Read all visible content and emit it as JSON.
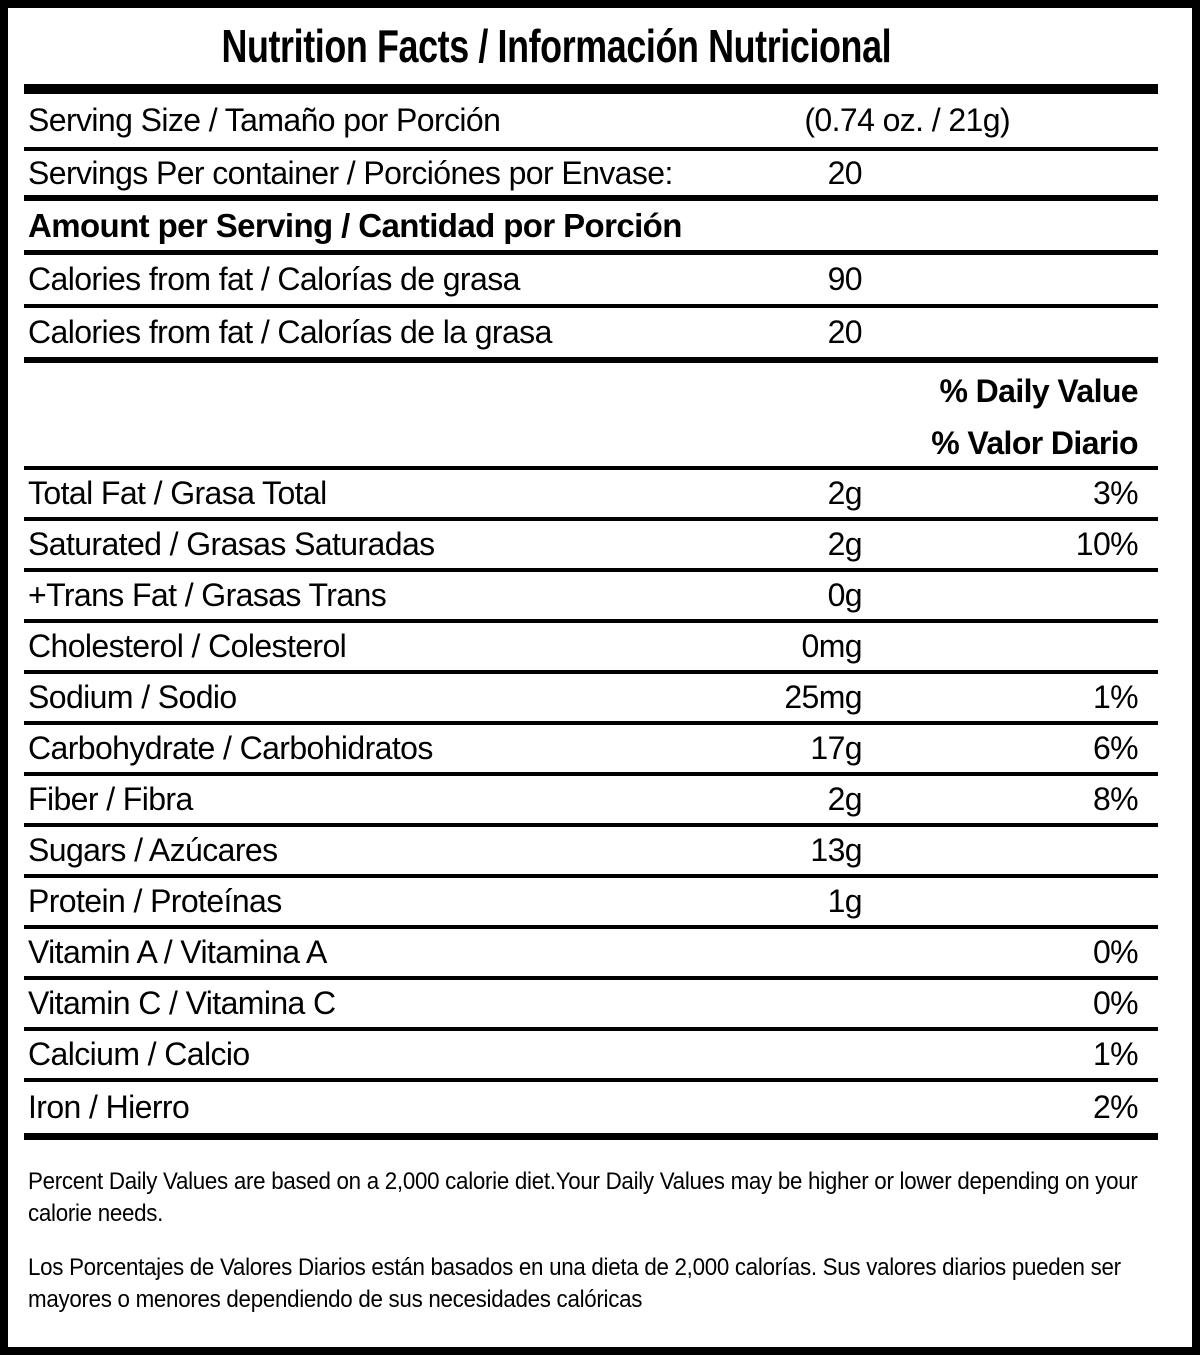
{
  "title": "Nutrition Facts / Información Nutricional",
  "serving_size": {
    "label": "Serving Size / Tamaño por Porción",
    "value": "(0.74 oz. / 21g)"
  },
  "servings_per_container": {
    "label": "Servings Per container / Porciónes por Envase:",
    "value": "20"
  },
  "section_heading": "Amount per Serving / Cantidad por Porción",
  "calories": [
    {
      "label": "Calories from fat / Calorías de grasa",
      "value": "90"
    },
    {
      "label": "Calories from fat / Calorías de la grasa",
      "value": "20"
    }
  ],
  "daily_value_header": {
    "en": "% Daily Value",
    "es": "% Valor Diario"
  },
  "nutrients": [
    {
      "label": "Total Fat / Grasa Total",
      "amount": "2g",
      "daily_value": "3%"
    },
    {
      "label": "Saturated / Grasas Saturadas",
      "amount": "2g",
      "daily_value": "10%"
    },
    {
      "label": "+Trans Fat / Grasas Trans",
      "amount": "0g",
      "daily_value": ""
    },
    {
      "label": "Cholesterol / Colesterol",
      "amount": "0mg",
      "daily_value": ""
    },
    {
      "label": "Sodium / Sodio",
      "amount": "25mg",
      "daily_value": "1%"
    },
    {
      "label": "Carbohydrate / Carbohidratos",
      "amount": "17g",
      "daily_value": "6%"
    },
    {
      "label": "Fiber / Fibra",
      "amount": "2g",
      "daily_value": "8%"
    },
    {
      "label": "Sugars / Azúcares",
      "amount": "13g",
      "daily_value": ""
    },
    {
      "label": "Protein / Proteínas",
      "amount": "1g",
      "daily_value": ""
    },
    {
      "label": "Vitamin A / Vitamina A",
      "amount": "",
      "daily_value": "0%"
    },
    {
      "label": "Vitamin C / Vitamina C",
      "amount": "",
      "daily_value": "0%"
    },
    {
      "label": "Calcium / Calcio",
      "amount": "",
      "daily_value": "1%"
    },
    {
      "label": "Iron / Hierro",
      "amount": "",
      "daily_value": "2%"
    }
  ],
  "footnotes": {
    "en": "Percent Daily Values are based on a 2,000 calorie diet.Your Daily Values may be higher or lower depending on your calorie needs.",
    "es": "Los Porcentajes de Valores Diarios están basados en una dieta de 2,000 calorías. Sus valores diarios pueden ser mayores o menores dependiendo de sus necesidades calóricas"
  },
  "colors": {
    "ink": "#000000",
    "background": "#ffffff"
  }
}
